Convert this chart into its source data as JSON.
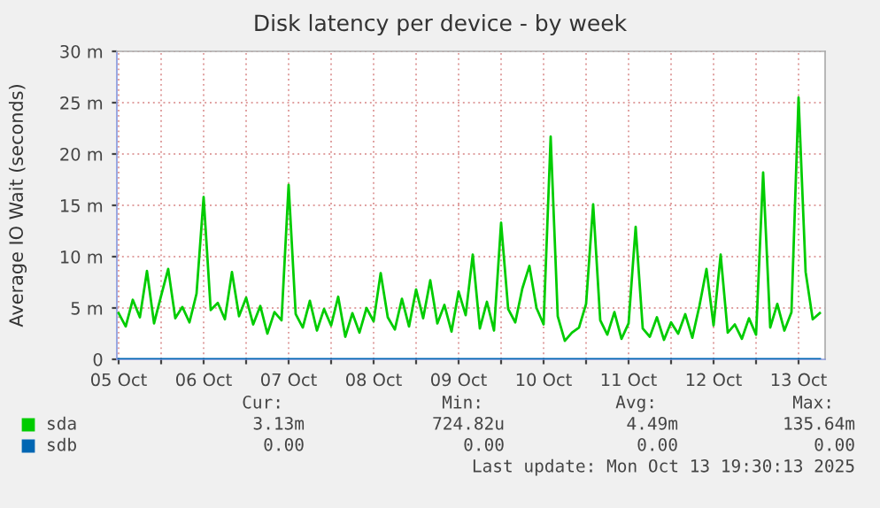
{
  "chart_data": {
    "type": "line",
    "title": "Disk latency per device - by week",
    "ylabel": "Average IO Wait (seconds)",
    "xlim": [
      "2025-10-05T11:30",
      "2025-10-13T19:30"
    ],
    "xticks": [
      {
        "value": "2025-10-05T12:00",
        "label": "05 Oct"
      },
      {
        "value": "2025-10-06T00:00",
        "label": null
      },
      {
        "value": "2025-10-06T12:00",
        "label": "06 Oct"
      },
      {
        "value": "2025-10-07T00:00",
        "label": null
      },
      {
        "value": "2025-10-07T12:00",
        "label": "07 Oct"
      },
      {
        "value": "2025-10-08T00:00",
        "label": null
      },
      {
        "value": "2025-10-08T12:00",
        "label": "08 Oct"
      },
      {
        "value": "2025-10-09T00:00",
        "label": null
      },
      {
        "value": "2025-10-09T12:00",
        "label": "09 Oct"
      },
      {
        "value": "2025-10-10T00:00",
        "label": null
      },
      {
        "value": "2025-10-10T12:00",
        "label": "10 Oct"
      },
      {
        "value": "2025-10-11T00:00",
        "label": null
      },
      {
        "value": "2025-10-11T12:00",
        "label": "11 Oct"
      },
      {
        "value": "2025-10-12T00:00",
        "label": null
      },
      {
        "value": "2025-10-12T12:00",
        "label": "12 Oct"
      },
      {
        "value": "2025-10-13T00:00",
        "label": null
      },
      {
        "value": "2025-10-13T12:00",
        "label": "13 Oct"
      }
    ],
    "ylim": [
      0,
      30
    ],
    "yticks": [
      0,
      {
        "value": 5,
        "label": "5 m"
      },
      {
        "value": 10,
        "label": "10 m"
      },
      {
        "value": 15,
        "label": "15 m"
      },
      {
        "value": 20,
        "label": "20 m"
      },
      {
        "value": 25,
        "label": "25 m"
      },
      {
        "value": 30,
        "label": "30 m"
      }
    ],
    "grid": true,
    "legend": "bottom left",
    "series": [
      {
        "name": "sda",
        "color": "#00cc00",
        "values": [
          4.5,
          3.2,
          5.8,
          4.1,
          8.6,
          3.5,
          6.2,
          8.8,
          4.0,
          5.1,
          3.6,
          6.4,
          15.8,
          4.8,
          5.5,
          3.9,
          8.5,
          4.2,
          6.0,
          3.4,
          5.2,
          2.5,
          4.6,
          3.8,
          17.0,
          4.4,
          3.1,
          5.7,
          2.8,
          4.9,
          3.3,
          6.1,
          2.2,
          4.5,
          2.6,
          5.0,
          3.7,
          8.4,
          4.1,
          2.9,
          5.9,
          3.2,
          6.8,
          4.0,
          7.7,
          3.5,
          5.3,
          2.7,
          6.6,
          4.3,
          10.2,
          3.0,
          5.6,
          2.8,
          13.3,
          4.9,
          3.6,
          6.9,
          9.1,
          5.0,
          3.4,
          21.7,
          4.2,
          1.8,
          2.6,
          3.1,
          5.4,
          15.1,
          3.8,
          2.4,
          4.6,
          2.0,
          3.5,
          12.9,
          3.0,
          2.2,
          4.1,
          1.9,
          3.6,
          2.5,
          4.4,
          2.1,
          5.2,
          8.8,
          3.3,
          10.2,
          2.6,
          3.4,
          2.0,
          4.0,
          2.4,
          18.2,
          3.1,
          5.4,
          2.8,
          4.6,
          25.5,
          8.5,
          3.9,
          4.5
        ]
      },
      {
        "name": "sdb",
        "color": "#0066b3",
        "values": [
          0,
          0,
          0,
          0,
          0,
          0,
          0,
          0,
          0,
          0,
          0,
          0,
          0,
          0,
          0,
          0,
          0,
          0,
          0,
          0,
          0,
          0,
          0,
          0,
          0,
          0,
          0,
          0,
          0,
          0,
          0,
          0,
          0,
          0,
          0,
          0,
          0,
          0,
          0,
          0,
          0,
          0,
          0,
          0,
          0,
          0,
          0,
          0,
          0,
          0,
          0,
          0,
          0,
          0,
          0,
          0,
          0,
          0,
          0,
          0,
          0,
          0,
          0,
          0,
          0,
          0,
          0,
          0,
          0,
          0,
          0,
          0,
          0,
          0,
          0,
          0,
          0,
          0,
          0,
          0,
          0,
          0,
          0,
          0,
          0,
          0,
          0,
          0,
          0,
          0,
          0,
          0,
          0,
          0,
          0,
          0,
          0,
          0,
          0,
          0
        ]
      }
    ],
    "x": [
      "2025-10-05T12:00",
      "2025-10-05T14:00",
      "2025-10-05T16:00",
      "2025-10-05T18:00",
      "2025-10-05T20:00",
      "2025-10-05T22:00",
      "2025-10-06T00:00",
      "2025-10-06T02:00",
      "2025-10-06T04:00",
      "2025-10-06T06:00",
      "2025-10-06T08:00",
      "2025-10-06T10:00",
      "2025-10-06T12:00",
      "2025-10-06T14:00",
      "2025-10-06T16:00",
      "2025-10-06T18:00",
      "2025-10-06T20:00",
      "2025-10-06T22:00",
      "2025-10-07T00:00",
      "2025-10-07T02:00",
      "2025-10-07T04:00",
      "2025-10-07T06:00",
      "2025-10-07T08:00",
      "2025-10-07T10:00",
      "2025-10-07T12:00",
      "2025-10-07T14:00",
      "2025-10-07T16:00",
      "2025-10-07T18:00",
      "2025-10-07T20:00",
      "2025-10-07T22:00",
      "2025-10-08T00:00",
      "2025-10-08T02:00",
      "2025-10-08T04:00",
      "2025-10-08T06:00",
      "2025-10-08T08:00",
      "2025-10-08T10:00",
      "2025-10-08T12:00",
      "2025-10-08T14:00",
      "2025-10-08T16:00",
      "2025-10-08T18:00",
      "2025-10-08T20:00",
      "2025-10-08T22:00",
      "2025-10-09T00:00",
      "2025-10-09T02:00",
      "2025-10-09T04:00",
      "2025-10-09T06:00",
      "2025-10-09T08:00",
      "2025-10-09T10:00",
      "2025-10-09T12:00",
      "2025-10-09T14:00",
      "2025-10-09T16:00",
      "2025-10-09T18:00",
      "2025-10-09T20:00",
      "2025-10-09T22:00",
      "2025-10-10T00:00",
      "2025-10-10T02:00",
      "2025-10-10T04:00",
      "2025-10-10T06:00",
      "2025-10-10T08:00",
      "2025-10-10T10:00",
      "2025-10-10T12:00",
      "2025-10-10T14:00",
      "2025-10-10T16:00",
      "2025-10-10T18:00",
      "2025-10-10T20:00",
      "2025-10-10T22:00",
      "2025-10-11T00:00",
      "2025-10-11T02:00",
      "2025-10-11T04:00",
      "2025-10-11T06:00",
      "2025-10-11T08:00",
      "2025-10-11T10:00",
      "2025-10-11T12:00",
      "2025-10-11T14:00",
      "2025-10-11T16:00",
      "2025-10-11T18:00",
      "2025-10-11T20:00",
      "2025-10-11T22:00",
      "2025-10-12T00:00",
      "2025-10-12T02:00",
      "2025-10-12T04:00",
      "2025-10-12T06:00",
      "2025-10-12T08:00",
      "2025-10-12T10:00",
      "2025-10-12T12:00",
      "2025-10-12T14:00",
      "2025-10-12T16:00",
      "2025-10-12T18:00",
      "2025-10-12T20:00",
      "2025-10-12T22:00",
      "2025-10-13T00:00",
      "2025-10-13T02:00",
      "2025-10-13T04:00",
      "2025-10-13T06:00",
      "2025-10-13T08:00",
      "2025-10-13T10:00",
      "2025-10-13T12:00",
      "2025-10-13T14:00",
      "2025-10-13T16:00",
      "2025-10-13T18:00"
    ],
    "annotations": [
      "Cur:",
      "Min:",
      "Avg:",
      "Max:",
      "3.13m",
      "724.82u",
      "4.49m",
      "135.64m",
      "0.00",
      "0.00",
      "0.00",
      "0.00",
      "Last update: Mon Oct 13 19:30:13 2025"
    ]
  }
}
